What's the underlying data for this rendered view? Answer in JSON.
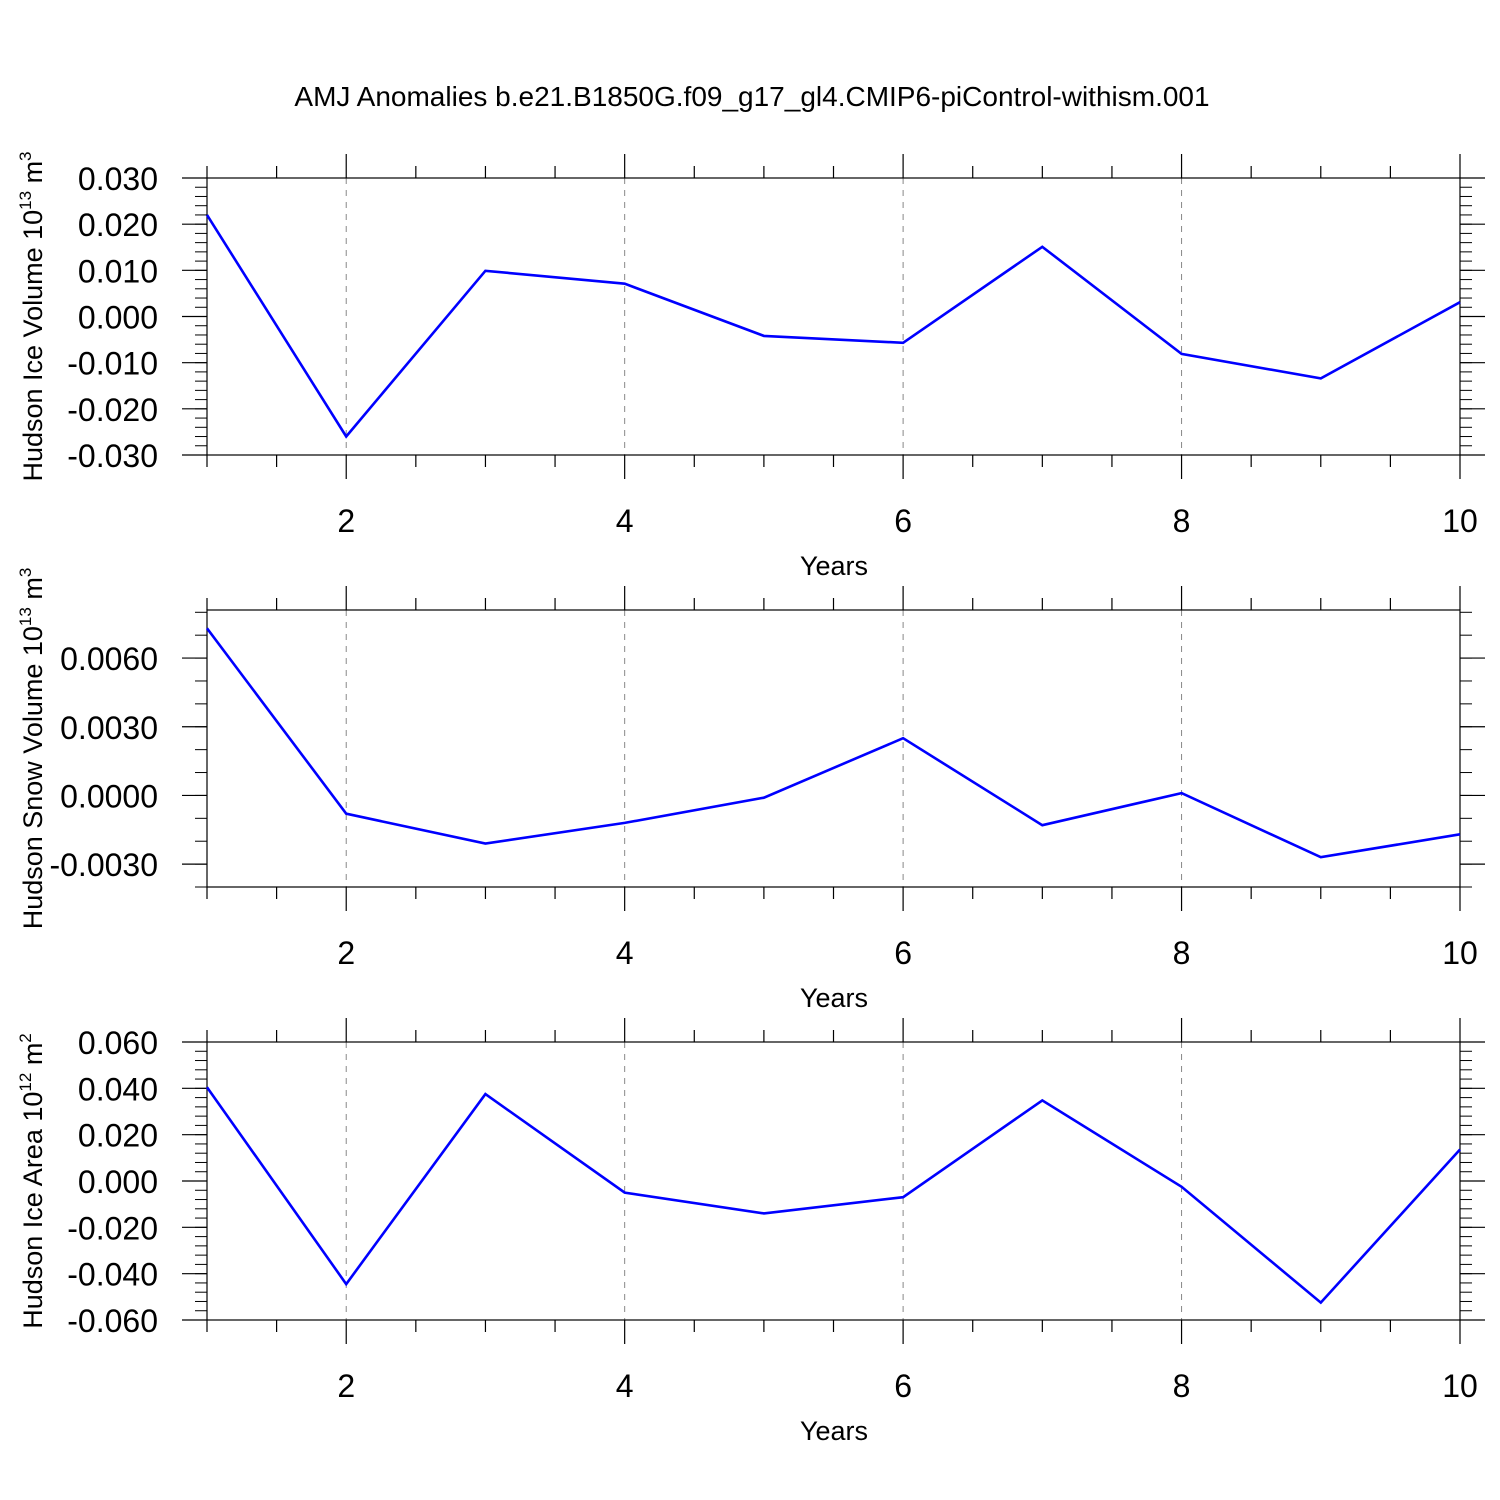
{
  "title": "AMJ Anomalies b.e21.B1850G.f09_g17_gl4.CMIP6-piControl-withism.001",
  "colors": {
    "series": "#0000ff",
    "axes": "#000000",
    "grid": "#888888"
  },
  "chart_data": [
    {
      "type": "line",
      "ylabel": {
        "text": "Hudson Ice Volume 10",
        "exp": "13",
        "unit": " m",
        "unit_exp": "3"
      },
      "xlabel": "Years",
      "xlim": [
        1,
        10
      ],
      "ylim": [
        -0.03,
        0.03
      ],
      "x_ticks": [
        2,
        4,
        6,
        8,
        10
      ],
      "x_tick_labels": [
        "2",
        "4",
        "6",
        "8",
        "10"
      ],
      "y_ticks": [
        -0.03,
        -0.02,
        -0.01,
        0.0,
        0.01,
        0.02,
        0.03
      ],
      "y_tick_labels": [
        "-0.030",
        "-0.020",
        "-0.010",
        "0.000",
        "0.010",
        "0.020",
        "0.030"
      ],
      "y_minor_step": 0.002,
      "grid": "vertical dashed at major x ticks",
      "x": [
        1,
        2,
        3,
        4,
        5,
        6,
        7,
        8,
        9,
        10
      ],
      "values": [
        0.022,
        -0.026,
        0.0099,
        0.0071,
        -0.0042,
        -0.0057,
        0.0151,
        -0.0081,
        -0.0134,
        0.0031
      ]
    },
    {
      "type": "line",
      "ylabel": {
        "text": "Hudson Snow Volume 10",
        "exp": "13",
        "unit": " m",
        "unit_exp": "3"
      },
      "xlabel": "Years",
      "xlim": [
        1,
        10
      ],
      "ylim": [
        -0.004,
        0.0081
      ],
      "x_ticks": [
        2,
        4,
        6,
        8,
        10
      ],
      "x_tick_labels": [
        "2",
        "4",
        "6",
        "8",
        "10"
      ],
      "y_ticks": [
        -0.003,
        0.0,
        0.003,
        0.006
      ],
      "y_tick_labels": [
        "-0.0030",
        "0.0000",
        "0.0030",
        "0.0060"
      ],
      "y_minor_step": 0.001,
      "grid": "vertical dashed at major x ticks",
      "x": [
        1,
        2,
        3,
        4,
        5,
        6,
        7,
        8,
        9,
        10
      ],
      "values": [
        0.0073,
        -0.0008,
        -0.0021,
        -0.0012,
        -0.0001,
        0.0025,
        -0.0013,
        0.0001,
        -0.0027,
        -0.0017
      ]
    },
    {
      "type": "line",
      "ylabel": {
        "text": "Hudson Ice Area 10",
        "exp": "12",
        "unit": " m",
        "unit_exp": "2"
      },
      "xlabel": "Years",
      "xlim": [
        1,
        10
      ],
      "ylim": [
        -0.06,
        0.06
      ],
      "x_ticks": [
        2,
        4,
        6,
        8,
        10
      ],
      "x_tick_labels": [
        "2",
        "4",
        "6",
        "8",
        "10"
      ],
      "y_ticks": [
        -0.06,
        -0.04,
        -0.02,
        0.0,
        0.02,
        0.04,
        0.06
      ],
      "y_tick_labels": [
        "-0.060",
        "-0.040",
        "-0.020",
        "0.000",
        "0.020",
        "0.040",
        "0.060"
      ],
      "y_minor_step": 0.004,
      "grid": "vertical dashed at major x ticks",
      "x": [
        1,
        2,
        3,
        4,
        5,
        6,
        7,
        8,
        9,
        10
      ],
      "values": [
        0.0405,
        -0.0445,
        0.0375,
        -0.005,
        -0.014,
        -0.007,
        0.0348,
        -0.0025,
        -0.0525,
        0.0136
      ]
    }
  ]
}
